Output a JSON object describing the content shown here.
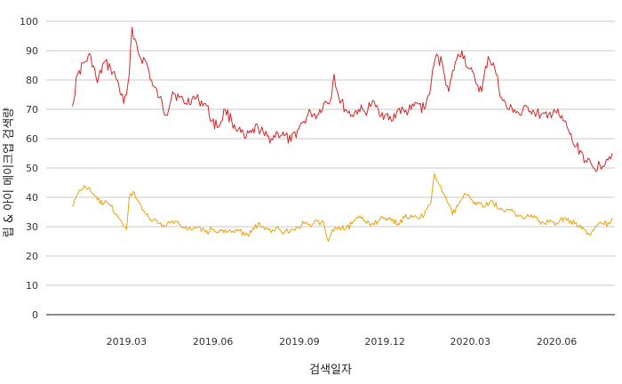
{
  "chart_data": {
    "type": "line",
    "xlabel": "검색일자",
    "ylabel": "립 & 아이 메이크업 검색량",
    "x_range": [
      "2019-01-01",
      "2020-07-31"
    ],
    "ylim": [
      0,
      100
    ],
    "y_ticks": [
      0,
      10,
      20,
      30,
      40,
      50,
      60,
      70,
      80,
      90,
      100
    ],
    "x_ticks": [
      {
        "date": "2019-03-01",
        "label": "2019.03"
      },
      {
        "date": "2019-06-01",
        "label": "2019.06"
      },
      {
        "date": "2019-09-01",
        "label": "2019.09"
      },
      {
        "date": "2019-12-01",
        "label": "2019.12"
      },
      {
        "date": "2020-03-01",
        "label": "2020.03"
      },
      {
        "date": "2020-06-01",
        "label": "2020.06"
      }
    ],
    "grid": true,
    "legend": "none",
    "series": [
      {
        "color": "#d62728",
        "points": [
          [
            "2019-01-02",
            71
          ],
          [
            "2019-01-08",
            82
          ],
          [
            "2019-01-15",
            86
          ],
          [
            "2019-01-22",
            88
          ],
          [
            "2019-01-29",
            79
          ],
          [
            "2019-02-05",
            86
          ],
          [
            "2019-02-12",
            84
          ],
          [
            "2019-02-19",
            80
          ],
          [
            "2019-02-26",
            72
          ],
          [
            "2019-03-01",
            75
          ],
          [
            "2019-03-04",
            82
          ],
          [
            "2019-03-07",
            98
          ],
          [
            "2019-03-10",
            94
          ],
          [
            "2019-03-15",
            88
          ],
          [
            "2019-03-22",
            86
          ],
          [
            "2019-03-29",
            78
          ],
          [
            "2019-04-05",
            74
          ],
          [
            "2019-04-12",
            68
          ],
          [
            "2019-04-19",
            76
          ],
          [
            "2019-04-26",
            74
          ],
          [
            "2019-05-03",
            72
          ],
          [
            "2019-05-10",
            74
          ],
          [
            "2019-05-17",
            73
          ],
          [
            "2019-05-24",
            72
          ],
          [
            "2019-05-31",
            66
          ],
          [
            "2019-06-07",
            64
          ],
          [
            "2019-06-14",
            70
          ],
          [
            "2019-06-21",
            66
          ],
          [
            "2019-06-28",
            63
          ],
          [
            "2019-07-05",
            60
          ],
          [
            "2019-07-12",
            62
          ],
          [
            "2019-07-19",
            64
          ],
          [
            "2019-07-26",
            61
          ],
          [
            "2019-08-02",
            60
          ],
          [
            "2019-08-09",
            62
          ],
          [
            "2019-08-16",
            61
          ],
          [
            "2019-08-23",
            59
          ],
          [
            "2019-08-30",
            63
          ],
          [
            "2019-09-06",
            66
          ],
          [
            "2019-09-13",
            69
          ],
          [
            "2019-09-20",
            68
          ],
          [
            "2019-09-27",
            72
          ],
          [
            "2019-10-04",
            73
          ],
          [
            "2019-10-08",
            82
          ],
          [
            "2019-10-13",
            74
          ],
          [
            "2019-10-20",
            70
          ],
          [
            "2019-10-27",
            68
          ],
          [
            "2019-11-03",
            70
          ],
          [
            "2019-11-10",
            69
          ],
          [
            "2019-11-17",
            72
          ],
          [
            "2019-11-24",
            70
          ],
          [
            "2019-12-01",
            68
          ],
          [
            "2019-12-08",
            66
          ],
          [
            "2019-12-15",
            70
          ],
          [
            "2019-12-22",
            69
          ],
          [
            "2019-12-29",
            70
          ],
          [
            "2020-01-05",
            72
          ],
          [
            "2020-01-12",
            70
          ],
          [
            "2020-01-19",
            78
          ],
          [
            "2020-01-24",
            88
          ],
          [
            "2020-01-31",
            86
          ],
          [
            "2020-02-07",
            76
          ],
          [
            "2020-02-14",
            86
          ],
          [
            "2020-02-21",
            90
          ],
          [
            "2020-02-28",
            84
          ],
          [
            "2020-03-06",
            80
          ],
          [
            "2020-03-13",
            76
          ],
          [
            "2020-03-20",
            88
          ],
          [
            "2020-03-27",
            84
          ],
          [
            "2020-04-03",
            74
          ],
          [
            "2020-04-10",
            70
          ],
          [
            "2020-04-17",
            70
          ],
          [
            "2020-04-24",
            68
          ],
          [
            "2020-05-01",
            71
          ],
          [
            "2020-05-08",
            69
          ],
          [
            "2020-05-15",
            68
          ],
          [
            "2020-05-22",
            67
          ],
          [
            "2020-05-29",
            70
          ],
          [
            "2020-06-05",
            67
          ],
          [
            "2020-06-12",
            64
          ],
          [
            "2020-06-19",
            58
          ],
          [
            "2020-06-26",
            56
          ],
          [
            "2020-07-03",
            52
          ],
          [
            "2020-07-10",
            50
          ],
          [
            "2020-07-17",
            51
          ],
          [
            "2020-07-24",
            53
          ],
          [
            "2020-07-30",
            55
          ]
        ]
      },
      {
        "color": "#e8a20c",
        "points": [
          [
            "2019-01-02",
            37
          ],
          [
            "2019-01-08",
            41
          ],
          [
            "2019-01-15",
            44
          ],
          [
            "2019-01-22",
            42
          ],
          [
            "2019-01-29",
            39
          ],
          [
            "2019-02-05",
            38
          ],
          [
            "2019-02-12",
            37
          ],
          [
            "2019-02-19",
            34
          ],
          [
            "2019-02-26",
            30
          ],
          [
            "2019-03-01",
            29
          ],
          [
            "2019-03-04",
            40
          ],
          [
            "2019-03-08",
            42
          ],
          [
            "2019-03-15",
            38
          ],
          [
            "2019-03-22",
            34
          ],
          [
            "2019-03-29",
            32
          ],
          [
            "2019-04-05",
            31
          ],
          [
            "2019-04-12",
            30
          ],
          [
            "2019-04-19",
            32
          ],
          [
            "2019-04-26",
            31
          ],
          [
            "2019-05-03",
            30
          ],
          [
            "2019-05-10",
            29
          ],
          [
            "2019-05-17",
            30
          ],
          [
            "2019-05-24",
            28
          ],
          [
            "2019-05-31",
            29
          ],
          [
            "2019-06-07",
            28
          ],
          [
            "2019-06-14",
            29
          ],
          [
            "2019-06-21",
            28
          ],
          [
            "2019-06-28",
            29
          ],
          [
            "2019-07-05",
            27
          ],
          [
            "2019-07-12",
            28
          ],
          [
            "2019-07-19",
            31
          ],
          [
            "2019-07-26",
            29
          ],
          [
            "2019-08-02",
            28
          ],
          [
            "2019-08-09",
            30
          ],
          [
            "2019-08-16",
            28
          ],
          [
            "2019-08-23",
            29
          ],
          [
            "2019-08-30",
            30
          ],
          [
            "2019-09-06",
            31
          ],
          [
            "2019-09-13",
            30
          ],
          [
            "2019-09-20",
            32
          ],
          [
            "2019-09-27",
            31
          ],
          [
            "2019-10-02",
            25
          ],
          [
            "2019-10-06",
            29
          ],
          [
            "2019-10-13",
            30
          ],
          [
            "2019-10-20",
            29
          ],
          [
            "2019-10-27",
            31
          ],
          [
            "2019-11-03",
            33
          ],
          [
            "2019-11-10",
            32
          ],
          [
            "2019-11-17",
            31
          ],
          [
            "2019-11-24",
            32
          ],
          [
            "2019-12-01",
            33
          ],
          [
            "2019-12-08",
            32
          ],
          [
            "2019-12-15",
            31
          ],
          [
            "2019-12-22",
            33
          ],
          [
            "2019-12-29",
            34
          ],
          [
            "2020-01-05",
            33
          ],
          [
            "2020-01-12",
            34
          ],
          [
            "2020-01-19",
            38
          ],
          [
            "2020-01-23",
            48
          ],
          [
            "2020-01-28",
            44
          ],
          [
            "2020-02-04",
            40
          ],
          [
            "2020-02-11",
            34
          ],
          [
            "2020-02-18",
            38
          ],
          [
            "2020-02-25",
            41
          ],
          [
            "2020-03-03",
            39
          ],
          [
            "2020-03-10",
            38
          ],
          [
            "2020-03-17",
            37
          ],
          [
            "2020-03-24",
            39
          ],
          [
            "2020-03-31",
            36
          ],
          [
            "2020-04-07",
            35
          ],
          [
            "2020-04-14",
            36
          ],
          [
            "2020-04-21",
            34
          ],
          [
            "2020-04-28",
            33
          ],
          [
            "2020-05-05",
            34
          ],
          [
            "2020-05-12",
            32
          ],
          [
            "2020-05-19",
            31
          ],
          [
            "2020-05-26",
            32
          ],
          [
            "2020-06-02",
            31
          ],
          [
            "2020-06-09",
            33
          ],
          [
            "2020-06-16",
            32
          ],
          [
            "2020-06-23",
            30
          ],
          [
            "2020-06-30",
            29
          ],
          [
            "2020-07-06",
            27
          ],
          [
            "2020-07-13",
            30
          ],
          [
            "2020-07-20",
            31
          ],
          [
            "2020-07-27",
            31
          ],
          [
            "2020-07-30",
            33
          ]
        ]
      }
    ]
  }
}
